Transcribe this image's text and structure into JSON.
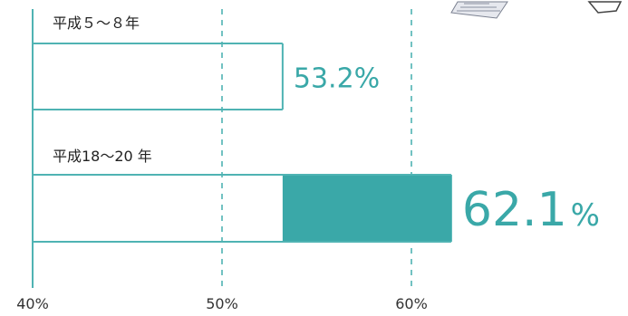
{
  "chart_data": {
    "type": "bar",
    "orientation": "horizontal",
    "categories": [
      "平成５～８年",
      "平成18～20 年"
    ],
    "values": [
      53.2,
      62.1
    ],
    "value_labels": [
      {
        "number": "53.2",
        "unit": "%"
      },
      {
        "number": "62.1",
        "unit": "%"
      }
    ],
    "x_ticks": [
      "40%",
      "50%",
      "60%"
    ],
    "x_tick_values": [
      40,
      50,
      60
    ],
    "xlim": [
      40,
      64
    ],
    "grid": "dashed vertical at 50% and 60%",
    "colors": {
      "accent": "#3aa8a8",
      "outline": "#4fb3b3",
      "fill_highlight": "#3aa8a8",
      "label_text": "#3aa8a8"
    }
  }
}
